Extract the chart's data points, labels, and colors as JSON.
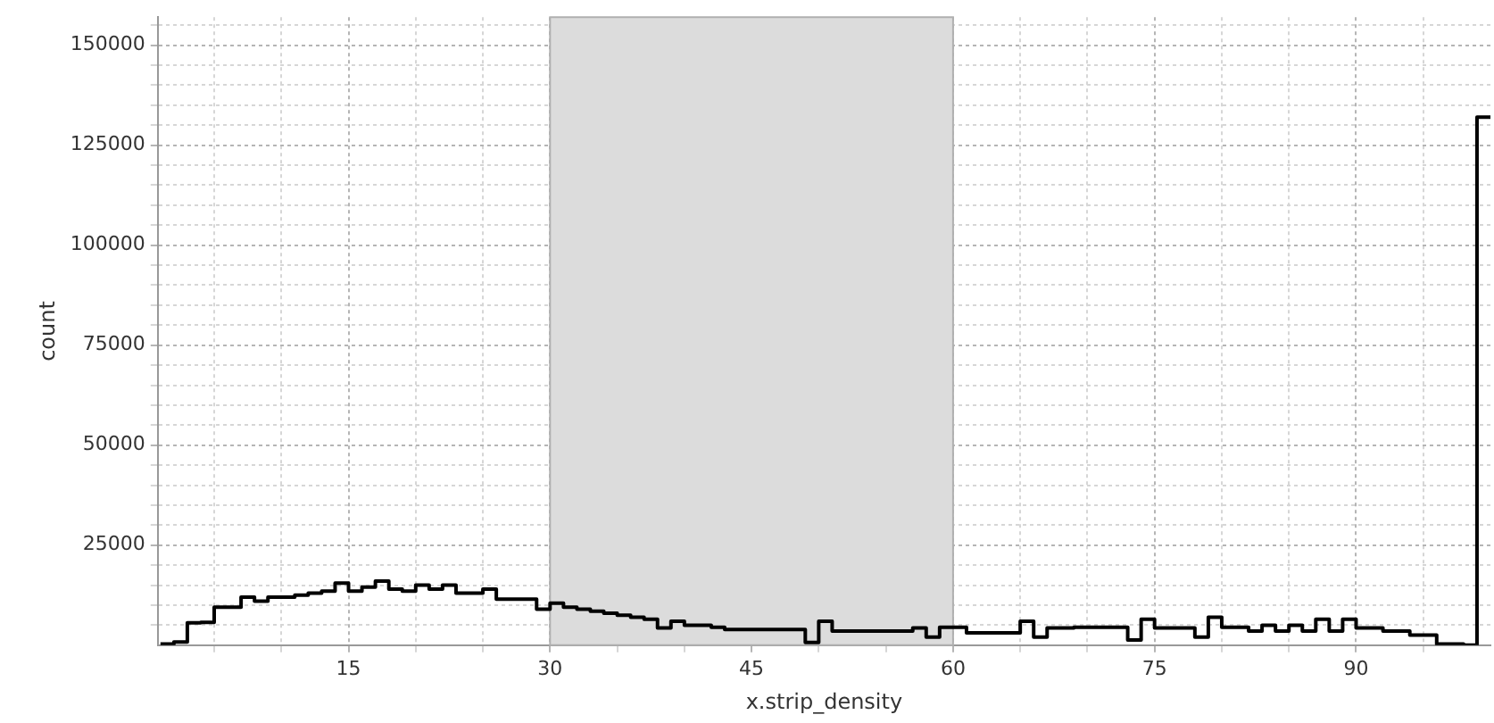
{
  "chart_data": {
    "type": "histogram",
    "xlabel": "x.strip_density",
    "ylabel": "count",
    "bins": [
      1,
      2,
      3,
      4,
      5,
      6,
      7,
      8,
      9,
      10,
      11,
      12,
      13,
      14,
      15,
      16,
      17,
      18,
      19,
      20,
      21,
      22,
      23,
      24,
      25,
      26,
      27,
      28,
      29,
      30,
      31,
      32,
      33,
      34,
      35,
      36,
      37,
      38,
      39,
      40,
      41,
      42,
      43,
      44,
      45,
      46,
      47,
      48,
      49,
      50,
      51,
      52,
      53,
      54,
      55,
      56,
      57,
      58,
      59,
      60,
      61,
      62,
      63,
      64,
      65,
      66,
      67,
      68,
      69,
      70,
      71,
      72,
      73,
      74,
      75,
      76,
      77,
      78,
      79,
      80,
      81,
      82,
      83,
      84,
      85,
      86,
      87,
      88,
      89,
      90,
      91,
      92,
      93,
      94,
      95,
      96,
      97,
      98,
      99,
      100
    ],
    "values": [
      300,
      800,
      5600,
      5700,
      9500,
      9500,
      12000,
      11000,
      12000,
      12000,
      12500,
      13000,
      13500,
      15500,
      13500,
      14500,
      16000,
      14000,
      13500,
      15000,
      14000,
      15000,
      13000,
      13000,
      14000,
      11500,
      11500,
      11500,
      9000,
      10500,
      9500,
      9000,
      8500,
      8000,
      7500,
      7000,
      6500,
      4300,
      6000,
      5000,
      5000,
      4500,
      3900,
      3900,
      3900,
      3900,
      3900,
      3900,
      700,
      6000,
      3500,
      3500,
      3500,
      3500,
      3500,
      3500,
      4300,
      2000,
      4500,
      4500,
      3100,
      3100,
      3100,
      3100,
      6000,
      2000,
      4300,
      4300,
      4500,
      4500,
      4500,
      4500,
      1300,
      6500,
      4300,
      4300,
      4300,
      2000,
      7000,
      4500,
      4500,
      3500,
      5000,
      3500,
      5000,
      3500,
      6500,
      3500,
      6500,
      4300,
      4300,
      3500,
      3500,
      2500,
      2500,
      300,
      300,
      0,
      132000
    ],
    "color": "#000000",
    "xlim": [
      0.8,
      100
    ],
    "xticks": [
      {
        "value": 5,
        "label": null
      },
      {
        "value": 10,
        "label": null
      },
      15,
      {
        "value": 20,
        "label": null
      },
      {
        "value": 25,
        "label": null
      },
      30,
      {
        "value": 35,
        "label": null
      },
      {
        "value": 40,
        "label": null
      },
      45,
      {
        "value": 50,
        "label": null
      },
      {
        "value": 55,
        "label": null
      },
      60,
      {
        "value": 65,
        "label": null
      },
      {
        "value": 70,
        "label": null
      },
      75,
      {
        "value": 80,
        "label": null
      },
      {
        "value": 85,
        "label": null
      },
      90,
      {
        "value": 95,
        "label": null
      }
    ],
    "ylim": [
      0,
      157000
    ],
    "yticks": [
      {
        "value": 5000,
        "label": null
      },
      {
        "value": 10000,
        "label": null
      },
      {
        "value": 15000,
        "label": null
      },
      {
        "value": 20000,
        "label": null
      },
      25000,
      {
        "value": 30000,
        "label": null
      },
      {
        "value": 35000,
        "label": null
      },
      {
        "value": 40000,
        "label": null
      },
      {
        "value": 45000,
        "label": null
      },
      50000,
      {
        "value": 55000,
        "label": null
      },
      {
        "value": 60000,
        "label": null
      },
      {
        "value": 65000,
        "label": null
      },
      {
        "value": 70000,
        "label": null
      },
      75000,
      {
        "value": 80000,
        "label": null
      },
      {
        "value": 85000,
        "label": null
      },
      {
        "value": 90000,
        "label": null
      },
      {
        "value": 95000,
        "label": null
      },
      100000,
      {
        "value": 105000,
        "label": null
      },
      {
        "value": 110000,
        "label": null
      },
      {
        "value": 115000,
        "label": null
      },
      {
        "value": 120000,
        "label": null
      },
      125000,
      {
        "value": 130000,
        "label": null
      },
      {
        "value": 135000,
        "label": null
      },
      {
        "value": 140000,
        "label": null
      },
      {
        "value": 145000,
        "label": null
      },
      150000,
      {
        "value": 155000,
        "label": null
      }
    ],
    "bands": [
      {
        "axis": "x",
        "from": 30,
        "to": 60,
        "color": "#dcdcdc"
      }
    ],
    "grid": true,
    "legend": false
  }
}
